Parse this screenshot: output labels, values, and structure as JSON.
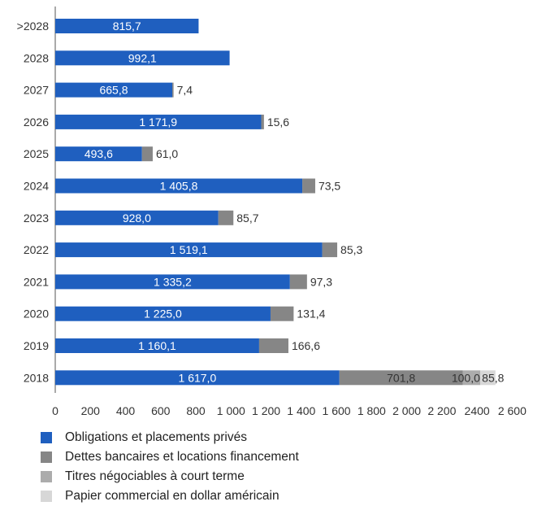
{
  "chart_data": {
    "type": "bar",
    "orientation": "horizontal",
    "stacked": true,
    "categories": [
      ">2028",
      "2028",
      "2027",
      "2026",
      "2025",
      "2024",
      "2023",
      "2022",
      "2021",
      "2020",
      "2019",
      "2018"
    ],
    "series": [
      {
        "name": "Obligations et placements privés",
        "color": "#1f5fbf",
        "values": [
          815.7,
          992.1,
          665.8,
          1171.9,
          493.6,
          1405.8,
          928.0,
          1519.1,
          1335.2,
          1225.0,
          1160.1,
          1617.0
        ],
        "labels": [
          "815,7",
          "992,1",
          "665,8",
          "1 171,9",
          "493,6",
          "1 405,8",
          "928,0",
          "1 519,1",
          "1 335,2",
          "1 225,0",
          "1 160,1",
          "1 617,0"
        ]
      },
      {
        "name": "Dettes bancaires et locations financement",
        "color": "#868686",
        "values": [
          0,
          0,
          7.4,
          15.6,
          61.0,
          73.5,
          85.7,
          85.3,
          97.3,
          131.4,
          166.6,
          701.8
        ],
        "labels": [
          "",
          "",
          "7,4",
          "15,6",
          "61,0",
          "73,5",
          "85,7",
          "85,3",
          "97,3",
          "131,4",
          "166,6",
          "701,8"
        ]
      },
      {
        "name": "Titres négociables à court terme",
        "color": "#acacac",
        "values": [
          0,
          0,
          0,
          0,
          0,
          0,
          0,
          0,
          0,
          0,
          0,
          100.0
        ],
        "labels": [
          "",
          "",
          "",
          "",
          "",
          "",
          "",
          "",
          "",
          "",
          "",
          "100,0"
        ]
      },
      {
        "name": "Papier commercial en dollar américain",
        "color": "#d7d7d7",
        "values": [
          0,
          0,
          0,
          0,
          0,
          0,
          0,
          0,
          0,
          0,
          0,
          85.8
        ],
        "labels": [
          "",
          "",
          "",
          "",
          "",
          "",
          "",
          "",
          "",
          "",
          "",
          "85,8"
        ]
      }
    ],
    "x_ticks": [
      "0",
      "200",
      "400",
      "600",
      "800",
      "1 000",
      "1 200",
      "1 400",
      "1 600",
      "1 800",
      "2 000",
      "2 200",
      "2400",
      "2 600"
    ],
    "xlim": [
      0,
      2600
    ],
    "grid": false,
    "legend_position": "bottom-left"
  }
}
